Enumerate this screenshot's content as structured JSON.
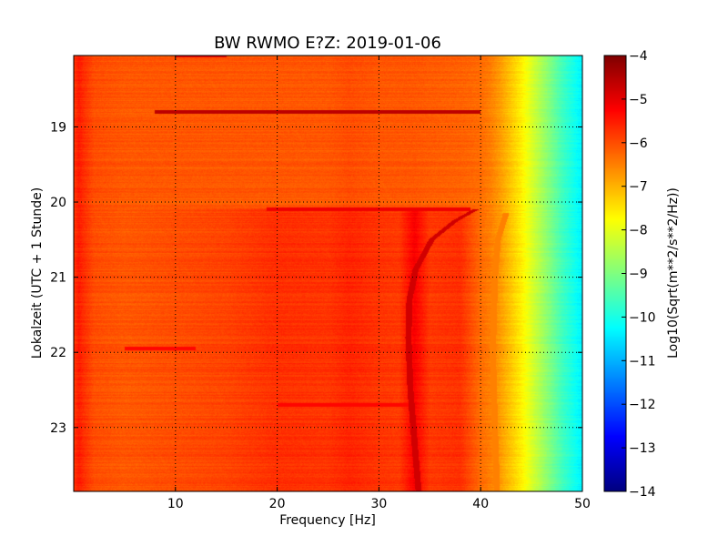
{
  "chart_data": {
    "type": "heatmap",
    "title": "BW RWMO E?Z: 2019-01-06",
    "xlabel": "Frequency [Hz]",
    "ylabel": "Lokalzeit (UTC + 1 Stunde)",
    "x_range": [
      0,
      50
    ],
    "y_range_hours": [
      18.05,
      23.85
    ],
    "y_axis_direction": "down",
    "x_ticks": [
      10,
      20,
      30,
      40,
      50
    ],
    "x_tick_labels": [
      "10",
      "20",
      "30",
      "40",
      "50"
    ],
    "y_ticks": [
      19,
      20,
      21,
      22,
      23
    ],
    "y_tick_labels": [
      "19",
      "20",
      "21",
      "22",
      "23"
    ],
    "grid": true,
    "colormap": "jet",
    "colorbar": {
      "label": "Log10(Sqrt(m**2/s**2/Hz))",
      "range": [
        -14,
        -4
      ],
      "ticks": [
        -4,
        -5,
        -6,
        -7,
        -8,
        -9,
        -10,
        -11,
        -12,
        -13,
        -14
      ],
      "tick_labels": [
        "−4",
        "−5",
        "−6",
        "−7",
        "−8",
        "−9",
        "−10",
        "−11",
        "−12",
        "−13",
        "−14"
      ]
    },
    "spectrum_profile_log10": {
      "frequency_hz": [
        0,
        0.5,
        1,
        2,
        5,
        10,
        15,
        20,
        25,
        27,
        30,
        32,
        33.5,
        35,
        38,
        40,
        41,
        42,
        43,
        44,
        45,
        46,
        47,
        48,
        49,
        50
      ],
      "level_before_20h": [
        -5.8,
        -5.5,
        -5.7,
        -6.0,
        -6.1,
        -6.1,
        -6.1,
        -6.1,
        -6.1,
        -6.0,
        -6.1,
        -6.1,
        -6.1,
        -6.15,
        -6.2,
        -6.3,
        -6.5,
        -6.8,
        -7.2,
        -7.6,
        -8.1,
        -8.6,
        -9.1,
        -9.6,
        -10.0,
        -10.4
      ],
      "level_after_20h": [
        -5.8,
        -5.5,
        -5.7,
        -6.0,
        -6.1,
        -6.0,
        -5.9,
        -5.7,
        -5.75,
        -5.6,
        -5.75,
        -5.8,
        -5.2,
        -5.8,
        -5.7,
        -6.3,
        -6.5,
        -6.8,
        -7.2,
        -7.6,
        -8.1,
        -8.6,
        -9.1,
        -9.6,
        -10.0,
        -10.4
      ]
    },
    "transition_time_hours": 20.08,
    "horizontal_bands": [
      {
        "time_hours": 18.05,
        "freq_range_hz": [
          10,
          15
        ],
        "level": -5.0
      },
      {
        "time_hours": 18.8,
        "freq_range_hz": [
          8,
          40
        ],
        "level": -4.6
      },
      {
        "time_hours": 20.1,
        "freq_range_hz": [
          19,
          39
        ],
        "level": -5.1
      },
      {
        "time_hours": 21.95,
        "freq_range_hz": [
          5,
          12
        ],
        "level": -5.3
      },
      {
        "time_hours": 22.7,
        "freq_range_hz": [
          20,
          33
        ],
        "level": -5.3
      }
    ],
    "tracks": [
      {
        "name": "",
        "level": -4.8,
        "points": [
          [
            39.5,
            20.1
          ],
          [
            37.5,
            20.25
          ],
          [
            35.2,
            20.5
          ],
          [
            33.6,
            20.9
          ],
          [
            33.0,
            21.3
          ],
          [
            32.9,
            21.8
          ],
          [
            33.1,
            22.5
          ],
          [
            33.5,
            23.2
          ],
          [
            33.9,
            23.85
          ]
        ]
      },
      {
        "name": "",
        "level": -6.5,
        "points": [
          [
            42.5,
            20.15
          ],
          [
            41.7,
            20.5
          ],
          [
            41.4,
            21.0
          ],
          [
            41.2,
            22.0
          ],
          [
            41.4,
            23.0
          ],
          [
            41.6,
            23.85
          ]
        ]
      }
    ]
  }
}
